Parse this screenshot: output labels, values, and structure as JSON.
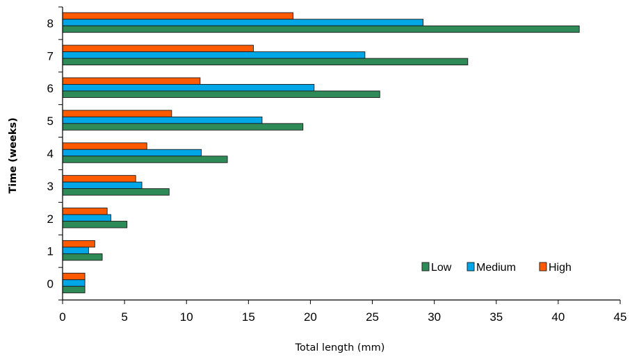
{
  "chart_data": {
    "type": "bar",
    "orientation": "horizontal",
    "title": "",
    "xlabel": "Total length (mm)",
    "ylabel": "Time (weeks)",
    "xlim": [
      0,
      45
    ],
    "x_ticks": [
      0,
      5,
      10,
      15,
      20,
      25,
      30,
      35,
      40,
      45
    ],
    "categories": [
      "0",
      "1",
      "2",
      "3",
      "4",
      "5",
      "6",
      "7",
      "8"
    ],
    "series": [
      {
        "name": "Low",
        "color": "#2e8b57",
        "values": [
          1.8,
          3.2,
          5.2,
          8.6,
          13.3,
          19.4,
          25.6,
          32.7,
          41.7
        ]
      },
      {
        "name": "Medium",
        "color": "#00a6e6",
        "values": [
          1.8,
          2.1,
          3.9,
          6.4,
          11.2,
          16.1,
          20.3,
          24.4,
          29.1
        ]
      },
      {
        "name": "High",
        "color": "#ff5a00",
        "values": [
          1.8,
          2.6,
          3.6,
          5.9,
          6.8,
          8.8,
          11.1,
          15.4,
          18.6
        ]
      }
    ],
    "grid": false,
    "legend": {
      "position": "bottom-right",
      "orientation": "horizontal"
    }
  }
}
